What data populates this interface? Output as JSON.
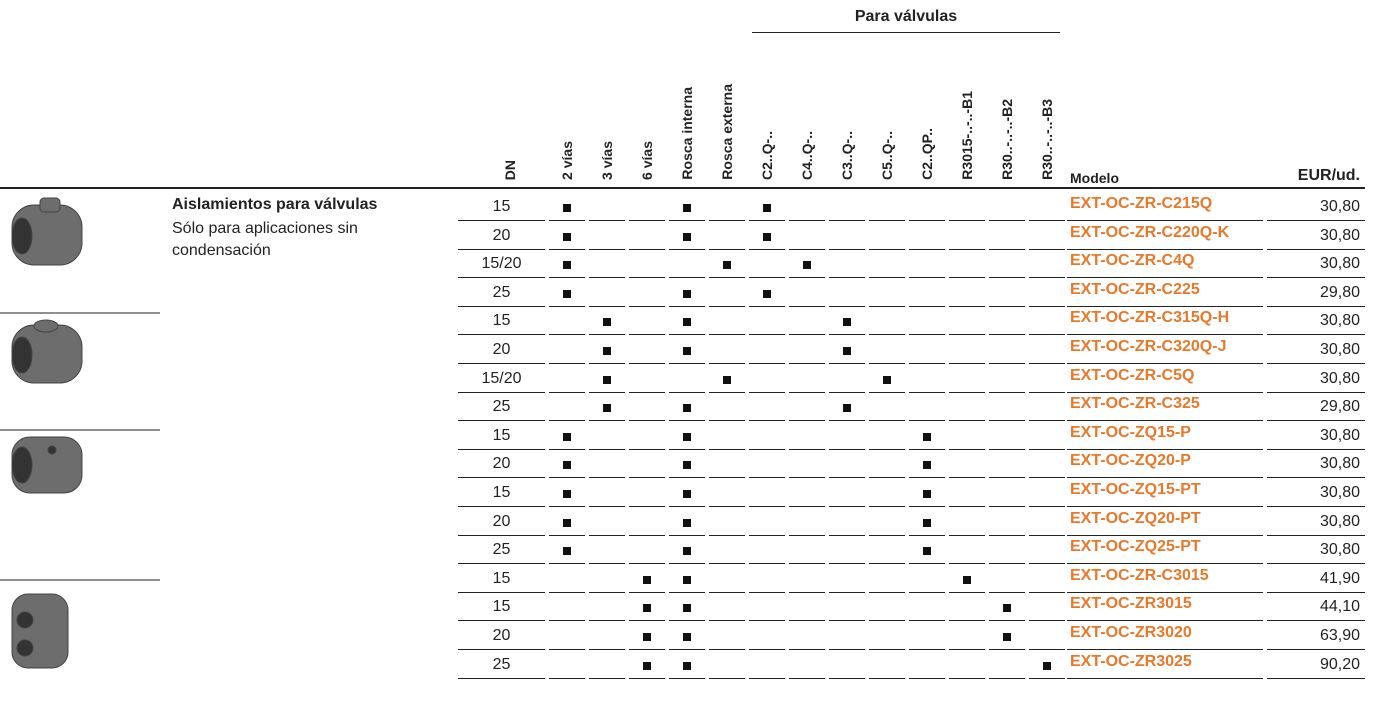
{
  "header": {
    "group_label": "Para válvulas",
    "columns": [
      "DN",
      "2 vías",
      "3 vías",
      "6 vías",
      "Rosca interna",
      "Rosca externa",
      "C2..Q-..",
      "C4..Q-..",
      "C3..Q-..",
      "C5..Q-..",
      "C2..QP..",
      "R3015-..-..-B1",
      "R30..-..-..-B2",
      "R30..-..-..-B3",
      "Modelo",
      "EUR/ud."
    ]
  },
  "product": {
    "title": "Aislamientos para válvulas",
    "description": "Sólo para aplicaciones sin condensación"
  },
  "rows": [
    {
      "dn": "15",
      "marks": [
        true,
        false,
        false,
        true,
        false,
        true,
        false,
        false,
        false,
        false,
        false,
        false,
        false
      ],
      "model": "EXT-OC-ZR-C215Q",
      "price": "30,80"
    },
    {
      "dn": "20",
      "marks": [
        true,
        false,
        false,
        true,
        false,
        true,
        false,
        false,
        false,
        false,
        false,
        false,
        false
      ],
      "model": "EXT-OC-ZR-C220Q-K",
      "price": "30,80"
    },
    {
      "dn": "15/20",
      "marks": [
        true,
        false,
        false,
        false,
        true,
        false,
        true,
        false,
        false,
        false,
        false,
        false,
        false
      ],
      "model": "EXT-OC-ZR-C4Q",
      "price": "30,80"
    },
    {
      "dn": "25",
      "marks": [
        true,
        false,
        false,
        true,
        false,
        true,
        false,
        false,
        false,
        false,
        false,
        false,
        false
      ],
      "model": "EXT-OC-ZR-C225",
      "price": "29,80"
    },
    {
      "dn": "15",
      "marks": [
        false,
        true,
        false,
        true,
        false,
        false,
        false,
        true,
        false,
        false,
        false,
        false,
        false
      ],
      "model": "EXT-OC-ZR-C315Q-H",
      "price": "30,80"
    },
    {
      "dn": "20",
      "marks": [
        false,
        true,
        false,
        true,
        false,
        false,
        false,
        true,
        false,
        false,
        false,
        false,
        false
      ],
      "model": "EXT-OC-ZR-C320Q-J",
      "price": "30,80"
    },
    {
      "dn": "15/20",
      "marks": [
        false,
        true,
        false,
        false,
        true,
        false,
        false,
        false,
        true,
        false,
        false,
        false,
        false
      ],
      "model": "EXT-OC-ZR-C5Q",
      "price": "30,80"
    },
    {
      "dn": "25",
      "marks": [
        false,
        true,
        false,
        true,
        false,
        false,
        false,
        true,
        false,
        false,
        false,
        false,
        false
      ],
      "model": "EXT-OC-ZR-C325",
      "price": "29,80"
    },
    {
      "dn": "15",
      "marks": [
        true,
        false,
        false,
        true,
        false,
        false,
        false,
        false,
        false,
        true,
        false,
        false,
        false
      ],
      "model": "EXT-OC-ZQ15-P",
      "price": "30,80"
    },
    {
      "dn": "20",
      "marks": [
        true,
        false,
        false,
        true,
        false,
        false,
        false,
        false,
        false,
        true,
        false,
        false,
        false
      ],
      "model": "EXT-OC-ZQ20-P",
      "price": "30,80"
    },
    {
      "dn": "15",
      "marks": [
        true,
        false,
        false,
        true,
        false,
        false,
        false,
        false,
        false,
        true,
        false,
        false,
        false
      ],
      "model": "EXT-OC-ZQ15-PT",
      "price": "30,80"
    },
    {
      "dn": "20",
      "marks": [
        true,
        false,
        false,
        true,
        false,
        false,
        false,
        false,
        false,
        true,
        false,
        false,
        false
      ],
      "model": "EXT-OC-ZQ20-PT",
      "price": "30,80"
    },
    {
      "dn": "25",
      "marks": [
        true,
        false,
        false,
        true,
        false,
        false,
        false,
        false,
        false,
        true,
        false,
        false,
        false
      ],
      "model": "EXT-OC-ZQ25-PT",
      "price": "30,80"
    },
    {
      "dn": "15",
      "marks": [
        false,
        false,
        true,
        true,
        false,
        false,
        false,
        false,
        false,
        false,
        true,
        false,
        false
      ],
      "model": "EXT-OC-ZR-C3015",
      "price": "41,90"
    },
    {
      "dn": "15",
      "marks": [
        false,
        false,
        true,
        true,
        false,
        false,
        false,
        false,
        false,
        false,
        false,
        true,
        false
      ],
      "model": "EXT-OC-ZR3015",
      "price": "44,10"
    },
    {
      "dn": "20",
      "marks": [
        false,
        false,
        true,
        true,
        false,
        false,
        false,
        false,
        false,
        false,
        false,
        true,
        false
      ],
      "model": "EXT-OC-ZR3020",
      "price": "63,90"
    },
    {
      "dn": "25",
      "marks": [
        false,
        false,
        true,
        true,
        false,
        false,
        false,
        false,
        false,
        false,
        false,
        false,
        true
      ],
      "model": "EXT-OC-ZR3025",
      "price": "90,20"
    }
  ]
}
